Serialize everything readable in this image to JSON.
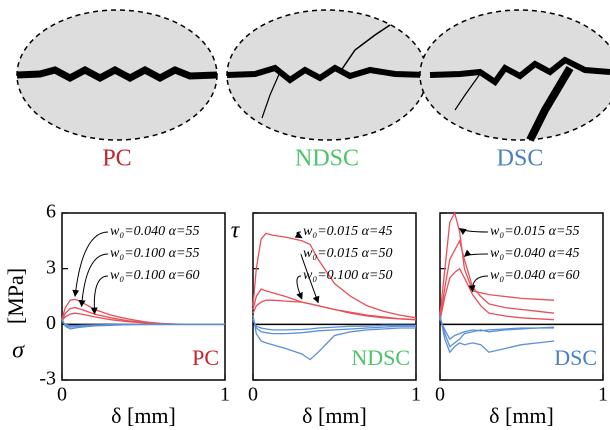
{
  "chart_data": [
    {
      "type": "line",
      "title": "PC",
      "title_color": "#c0272d",
      "xlabel": "δ [mm]",
      "ylabel": "[MPa]",
      "ylabel_bottom": "σ",
      "ylabel_top": "τ",
      "xlim": [
        0,
        1
      ],
      "xticks": [
        0,
        1
      ],
      "ylim": [
        -3,
        6
      ],
      "yticks": [
        -3,
        0,
        3,
        6
      ],
      "x": [
        0,
        0.02,
        0.05,
        0.08,
        0.12,
        0.2,
        0.3,
        0.4,
        0.5,
        0.6,
        0.7,
        0.8,
        1.0
      ],
      "series": [
        {
          "name": "w₀=0.040 α=55",
          "color": "#e8505a",
          "values": [
            0.3,
            0.9,
            1.3,
            1.35,
            1.2,
            0.8,
            0.5,
            0.3,
            0.15,
            0.05,
            0.02,
            0,
            0
          ]
        },
        {
          "name": "w₀=0.100 α=55",
          "color": "#e8505a",
          "values": [
            0.2,
            0.6,
            0.85,
            0.9,
            0.8,
            0.55,
            0.35,
            0.2,
            0.1,
            0.05,
            0,
            0,
            0
          ]
        },
        {
          "name": "w₀=0.100 α=60",
          "color": "#e8505a",
          "values": [
            0.2,
            0.4,
            0.55,
            0.6,
            0.55,
            0.4,
            0.25,
            0.15,
            0.08,
            0.03,
            0,
            0,
            0
          ]
        },
        {
          "color": "#5b8fd6",
          "values": [
            0.3,
            -0.1,
            -0.25,
            -0.2,
            -0.15,
            -0.08,
            -0.05,
            -0.02,
            0,
            0,
            0,
            0,
            0
          ]
        },
        {
          "color": "#5b8fd6",
          "values": [
            0.2,
            -0.05,
            -0.15,
            -0.12,
            -0.1,
            -0.05,
            -0.03,
            -0.01,
            0,
            0,
            0,
            0,
            0
          ]
        },
        {
          "color": "#5b8fd6",
          "values": [
            0.15,
            0,
            -0.08,
            -0.07,
            -0.05,
            -0.03,
            -0.02,
            0,
            0,
            0,
            0,
            0,
            0
          ]
        }
      ]
    },
    {
      "type": "line",
      "title": "NDSC",
      "title_color": "#4cc46a",
      "xlabel": "δ [mm]",
      "xlim": [
        0,
        1
      ],
      "xticks": [
        0,
        1
      ],
      "ylim": [
        -3,
        6
      ],
      "yticks": [
        -3,
        0,
        3,
        6
      ],
      "x": [
        0,
        0.02,
        0.05,
        0.08,
        0.12,
        0.2,
        0.3,
        0.35,
        0.4,
        0.5,
        0.6,
        0.7,
        0.8,
        0.9,
        1.0
      ],
      "series": [
        {
          "name": "w₀=0.015 α=45",
          "color": "#e8505a",
          "values": [
            1,
            3,
            4.6,
            4.9,
            4.8,
            4.7,
            4.5,
            4.3,
            3.5,
            2.2,
            1.5,
            1.0,
            0.7,
            0.5,
            0.35
          ]
        },
        {
          "name": "w₀=0.015 α=50",
          "color": "#e8505a",
          "values": [
            0.8,
            1.5,
            1.9,
            1.8,
            1.7,
            1.5,
            1.2,
            1.1,
            1.0,
            0.8,
            0.6,
            0.45,
            0.35,
            0.3,
            0.25
          ]
        },
        {
          "name": "w₀=0.100 α=50",
          "color": "#e8505a",
          "values": [
            0.6,
            1.0,
            1.2,
            1.3,
            1.3,
            1.25,
            1.2,
            1.1,
            1.0,
            0.8,
            0.65,
            0.5,
            0.4,
            0.3,
            0.25
          ]
        },
        {
          "color": "#5b8fd6",
          "values": [
            0.5,
            -0.5,
            -0.9,
            -1.0,
            -1.1,
            -1.3,
            -1.6,
            -1.9,
            -1.5,
            -0.6,
            -0.4,
            -0.3,
            -0.25,
            -0.2,
            -0.2
          ]
        },
        {
          "color": "#5b8fd6",
          "values": [
            0.3,
            -0.2,
            -0.4,
            -0.45,
            -0.5,
            -0.5,
            -0.45,
            -0.4,
            -0.35,
            -0.3,
            -0.25,
            -0.2,
            -0.15,
            -0.1,
            -0.1
          ]
        },
        {
          "color": "#5b8fd6",
          "values": [
            0.2,
            -0.1,
            -0.2,
            -0.25,
            -0.3,
            -0.3,
            -0.28,
            -0.25,
            -0.2,
            -0.15,
            -0.1,
            -0.1,
            -0.05,
            -0.05,
            -0.05
          ]
        }
      ]
    },
    {
      "type": "line",
      "title": "DSC",
      "title_color": "#4a7fc1",
      "xlabel": "δ [mm]",
      "xlim": [
        0,
        1
      ],
      "xticks": [
        0,
        1
      ],
      "ylim": [
        -3,
        6
      ],
      "yticks": [
        -3,
        0,
        3,
        6
      ],
      "x": [
        0,
        0.03,
        0.06,
        0.09,
        0.12,
        0.15,
        0.2,
        0.25,
        0.3,
        0.4,
        0.5,
        0.6,
        0.7
      ],
      "series": [
        {
          "name": "w₀=0.015 α=55",
          "color": "#e8505a",
          "values": [
            0.5,
            3,
            5.5,
            6,
            5,
            3,
            1.8,
            1.7,
            1.6,
            1.5,
            1.4,
            1.35,
            1.3
          ]
        },
        {
          "name": "w₀=0.040 α=45",
          "color": "#e8505a",
          "values": [
            0.3,
            2,
            3.5,
            4,
            4.5,
            3.5,
            2.0,
            1.5,
            1.1,
            0.9,
            0.8,
            0.7,
            0.6
          ]
        },
        {
          "name": "w₀=0.040 α=60",
          "color": "#e8505a",
          "values": [
            0.2,
            1.5,
            2.5,
            2.8,
            3.0,
            2.5,
            1.6,
            1.0,
            0.6,
            0.45,
            0.35,
            0.3,
            0.25
          ]
        },
        {
          "color": "#5b8fd6",
          "values": [
            0.5,
            -0.8,
            -1.5,
            -1.2,
            -1.0,
            -1.1,
            -1.0,
            -1.1,
            -1.5,
            -1.3,
            -1.1,
            -1.0,
            -0.9
          ]
        },
        {
          "color": "#5b8fd6",
          "values": [
            0.4,
            -0.5,
            -1.2,
            -1.0,
            -0.8,
            -0.5,
            -0.4,
            -0.3,
            -0.4,
            -0.3,
            -0.25,
            -0.2,
            -0.2
          ]
        },
        {
          "color": "#5b8fd6",
          "values": [
            0.3,
            -0.3,
            -0.8,
            -0.6,
            -0.5,
            -0.4,
            -0.3,
            -0.35,
            -0.3,
            -0.25,
            -0.2,
            -0.2,
            -0.15
          ]
        }
      ]
    }
  ]
}
